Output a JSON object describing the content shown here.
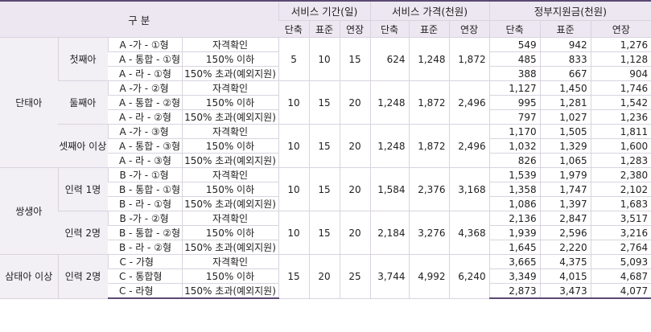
{
  "header": {
    "category": "구 분",
    "groups": [
      "서비스 기간(일)",
      "서비스 가격(천원)",
      "정부지원금(천원)"
    ],
    "sub": [
      "단축",
      "표준",
      "연장"
    ]
  },
  "rows": [
    {
      "cat": "단태아",
      "sub": "첫째아",
      "type": "A -가 - ①형",
      "crit": "자격확인",
      "days": [
        "5",
        "10",
        "15"
      ],
      "price": [
        "624",
        "1,248",
        "1,872"
      ],
      "gov": [
        "549",
        "942",
        "1,276"
      ]
    },
    {
      "type": "A - 통합 - ①형",
      "crit": "150% 이하",
      "gov": [
        "485",
        "833",
        "1,128"
      ]
    },
    {
      "type": "A - 라 - ①형",
      "crit": "150% 초과(예외지원)",
      "gov": [
        "388",
        "667",
        "904"
      ]
    },
    {
      "sub": "둘째아",
      "type": "A -가 - ②형",
      "crit": "자격확인",
      "days": [
        "10",
        "15",
        "20"
      ],
      "price": [
        "1,248",
        "1,872",
        "2,496"
      ],
      "gov": [
        "1,127",
        "1,450",
        "1,746"
      ]
    },
    {
      "type": "A - 통합 - ②형",
      "crit": "150% 이하",
      "gov": [
        "995",
        "1,281",
        "1,542"
      ]
    },
    {
      "type": "A - 라 - ②형",
      "crit": "150% 초과(예외지원)",
      "gov": [
        "797",
        "1,027",
        "1,236"
      ]
    },
    {
      "sub": "셋째아 이상",
      "type": "A -가 - ③형",
      "crit": "자격확인",
      "days": [
        "10",
        "15",
        "20"
      ],
      "price": [
        "1,248",
        "1,872",
        "2,496"
      ],
      "gov": [
        "1,170",
        "1,505",
        "1,811"
      ]
    },
    {
      "type": "A - 통합 - ③형",
      "crit": "150% 이하",
      "gov": [
        "1,032",
        "1,329",
        "1,600"
      ]
    },
    {
      "type": "A - 라 - ③형",
      "crit": "150% 초과(예외지원)",
      "gov": [
        "826",
        "1,065",
        "1,283"
      ]
    },
    {
      "cat": "쌍생아",
      "sub": "인력 1명",
      "type": "B -가 - ①형",
      "crit": "자격확인",
      "days": [
        "10",
        "15",
        "20"
      ],
      "price": [
        "1,584",
        "2,376",
        "3,168"
      ],
      "gov": [
        "1,539",
        "1,979",
        "2,380"
      ]
    },
    {
      "type": "B - 통합 - ①형",
      "crit": "150% 이하",
      "gov": [
        "1,358",
        "1,747",
        "2,102"
      ]
    },
    {
      "type": "B - 라 - ①형",
      "crit": "150% 초과(예외지원)",
      "gov": [
        "1,086",
        "1,397",
        "1,683"
      ]
    },
    {
      "sub": "인력 2명",
      "type": "B -가 - ②형",
      "crit": "자격확인",
      "days": [
        "10",
        "15",
        "20"
      ],
      "price": [
        "2,184",
        "3,276",
        "4,368"
      ],
      "gov": [
        "2,136",
        "2,847",
        "3,517"
      ]
    },
    {
      "type": "B - 통합 - ②형",
      "crit": "150% 이하",
      "gov": [
        "1,939",
        "2,596",
        "3,216"
      ]
    },
    {
      "type": "B - 라 - ②형",
      "crit": "150% 초과(예외지원)",
      "gov": [
        "1,645",
        "2,220",
        "2,764"
      ]
    },
    {
      "cat": "삼태아 이상",
      "sub": "인력 2명",
      "type": "C - 가형",
      "crit": "자격확인",
      "days": [
        "15",
        "20",
        "25"
      ],
      "price": [
        "3,744",
        "4,992",
        "6,240"
      ],
      "gov": [
        "3,665",
        "4,375",
        "5,093"
      ]
    },
    {
      "type": "C - 통합형",
      "crit": "150% 이하",
      "gov": [
        "3,349",
        "4,015",
        "4,687"
      ]
    },
    {
      "type": "C - 라형",
      "crit": "150% 초과(예외지원)",
      "gov": [
        "2,873",
        "3,473",
        "4,077"
      ]
    }
  ]
}
